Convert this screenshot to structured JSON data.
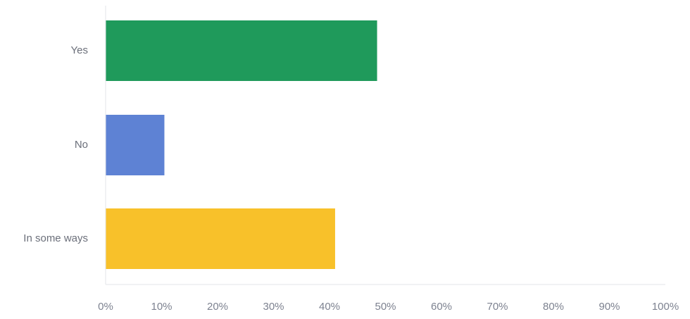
{
  "chart_data": {
    "type": "bar",
    "orientation": "horizontal",
    "categories": [
      "Yes",
      "No",
      "In some ways"
    ],
    "values": [
      48.5,
      10.5,
      41
    ],
    "value_unit": "%",
    "xlim": [
      0,
      100
    ],
    "x_ticks": [
      "0%",
      "10%",
      "20%",
      "30%",
      "40%",
      "50%",
      "60%",
      "70%",
      "80%",
      "90%",
      "100%"
    ],
    "title": "",
    "xlabel": "",
    "ylabel": "",
    "grid": false,
    "legend": "none",
    "colors": [
      "#1f9a5b",
      "#5e82d4",
      "#f8c12a"
    ],
    "axis_color": "#e3e5ea",
    "label_color": "#6b6f7a",
    "background": "#ffffff"
  }
}
